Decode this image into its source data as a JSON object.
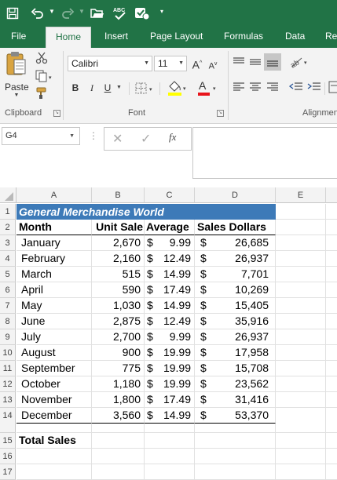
{
  "ribbon_tabs": [
    "File",
    "Home",
    "Insert",
    "Page Layout",
    "Formulas",
    "Data",
    "Re"
  ],
  "ribbon": {
    "paste_label": "Paste",
    "font_name": "Calibri",
    "font_size": "11",
    "grow_font": "A",
    "shrink_font": "A",
    "bold": "B",
    "italic": "I",
    "underline": "U",
    "font_color_letter": "A",
    "groups": {
      "clipboard": "Clipboard",
      "font": "Font",
      "alignment": "Alignmen"
    }
  },
  "formula_bar": {
    "name_box": "G4",
    "fx": "fx",
    "content": ""
  },
  "columns": [
    "A",
    "B",
    "C",
    "D",
    "E"
  ],
  "row_numbers": [
    "1",
    "2",
    "3",
    "4",
    "5",
    "6",
    "7",
    "8",
    "9",
    "10",
    "11",
    "12",
    "13",
    "14",
    "15",
    "16",
    "17"
  ],
  "sheet": {
    "title": "General Merchandise World",
    "headers": {
      "month": "Month",
      "unit_sale": "Unit Sale",
      "average": "Average",
      "sales_dollars": "Sales Dollars"
    },
    "currency_symbol": "$",
    "rows": [
      {
        "month": "January",
        "unit_sale": "2,670",
        "average": "9.99",
        "sales": "26,685"
      },
      {
        "month": "February",
        "unit_sale": "2,160",
        "average": "12.49",
        "sales": "26,937"
      },
      {
        "month": "March",
        "unit_sale": "515",
        "average": "14.99",
        "sales": "7,701"
      },
      {
        "month": "April",
        "unit_sale": "590",
        "average": "17.49",
        "sales": "10,269"
      },
      {
        "month": "May",
        "unit_sale": "1,030",
        "average": "14.99",
        "sales": "15,405"
      },
      {
        "month": "June",
        "unit_sale": "2,875",
        "average": "12.49",
        "sales": "35,916"
      },
      {
        "month": "July",
        "unit_sale": "2,700",
        "average": "9.99",
        "sales": "26,937"
      },
      {
        "month": "August",
        "unit_sale": "900",
        "average": "19.99",
        "sales": "17,958"
      },
      {
        "month": "September",
        "unit_sale": "775",
        "average": "19.99",
        "sales": "15,708"
      },
      {
        "month": "October",
        "unit_sale": "1,180",
        "average": "19.99",
        "sales": "23,562"
      },
      {
        "month": "November",
        "unit_sale": "1,800",
        "average": "17.49",
        "sales": "31,416"
      },
      {
        "month": "December",
        "unit_sale": "3,560",
        "average": "14.99",
        "sales": "53,370"
      }
    ],
    "total_label": "Total Sales"
  },
  "colors": {
    "excel_green": "#217346",
    "title_fill": "#3d7ab8"
  }
}
